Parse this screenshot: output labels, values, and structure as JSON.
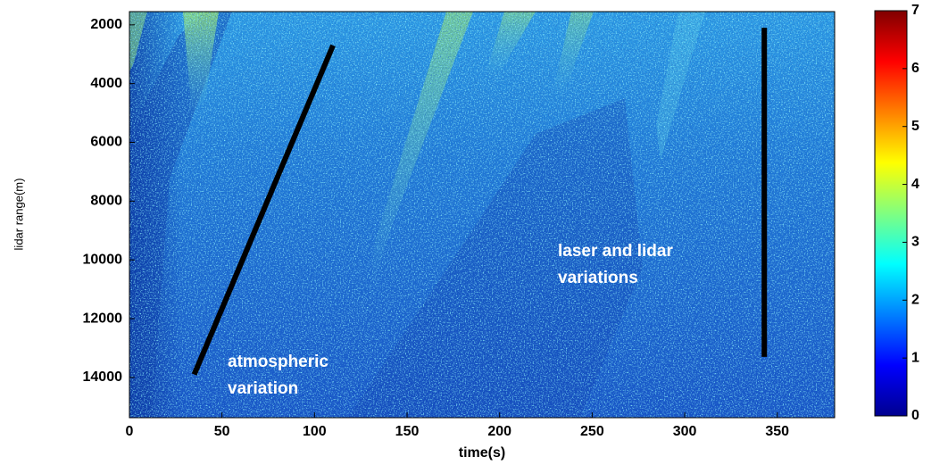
{
  "chart_data": {
    "type": "heatmap",
    "xlabel": "time(s)",
    "ylabel": "lidar range(m)",
    "xlim": [
      0,
      381
    ],
    "xticks": [
      0,
      50,
      100,
      150,
      200,
      250,
      300,
      350
    ],
    "ylim": [
      1550,
      15370
    ],
    "y_reversed": true,
    "yticks": [
      2000,
      4000,
      6000,
      8000,
      10000,
      12000,
      14000
    ],
    "colormap": "jet",
    "zlim": [
      0,
      7
    ],
    "zticks": [
      0,
      1,
      2,
      3,
      4,
      5,
      6,
      7
    ],
    "overlay_lines": [
      {
        "x": [
          35,
          110
        ],
        "y": [
          13900,
          2700
        ]
      },
      {
        "x": [
          343,
          343
        ],
        "y": [
          13300,
          2100
        ]
      }
    ],
    "annotations": [
      [
        "atmospheric",
        "variation"
      ],
      [
        "laser and lidar",
        "variations"
      ]
    ]
  }
}
